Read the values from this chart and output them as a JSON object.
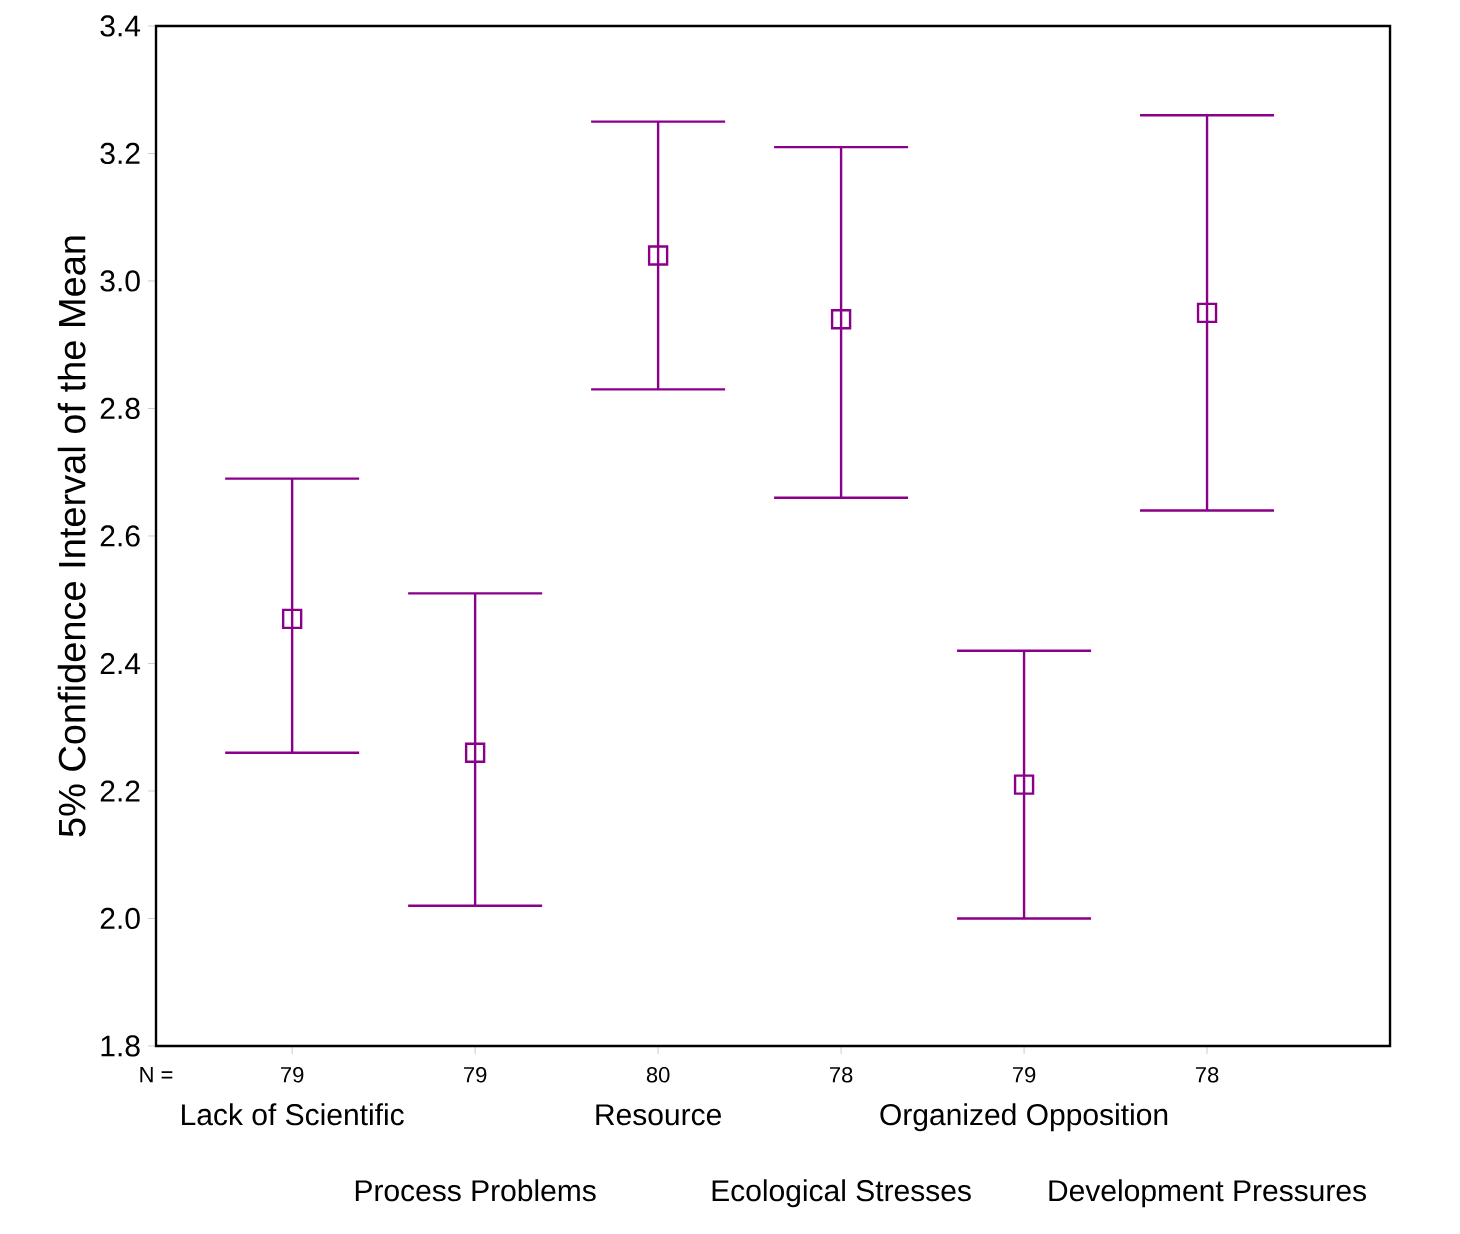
{
  "chart_data": {
    "type": "scatter",
    "ylabel": "5% Confidence Interval of the Mean",
    "categories": [
      "Lack of Scientific",
      "Process Problems",
      "Resource",
      "Ecological Stresses",
      "Organized Opposition",
      "Development Pressures"
    ],
    "values": [
      2.47,
      2.26,
      3.04,
      2.94,
      2.21,
      2.95
    ],
    "errors": [
      [
        2.26,
        2.69
      ],
      [
        2.02,
        2.51
      ],
      [
        2.83,
        3.25
      ],
      [
        2.66,
        3.21
      ],
      [
        2.0,
        2.42
      ],
      [
        2.64,
        3.26
      ]
    ],
    "color": "#8b008b",
    "marker": "square",
    "ylim": [
      1.8,
      3.4
    ],
    "yticks": [
      {
        "value": 1.8,
        "label": "1.8"
      },
      {
        "value": 2,
        "label": "2.0"
      },
      {
        "value": 2.2,
        "label": "2.2"
      },
      {
        "value": 2.4,
        "label": "2.4"
      },
      {
        "value": 2.6,
        "label": "2.6"
      },
      {
        "value": 2.8,
        "label": "2.8"
      },
      {
        "value": 3,
        "label": "3.0"
      },
      {
        "value": 3.2,
        "label": "3.2"
      },
      {
        "value": 3.4,
        "label": "3.4"
      }
    ],
    "annotations": [
      "N =",
      "79",
      "79",
      "80",
      "78",
      "79",
      "78"
    ]
  }
}
